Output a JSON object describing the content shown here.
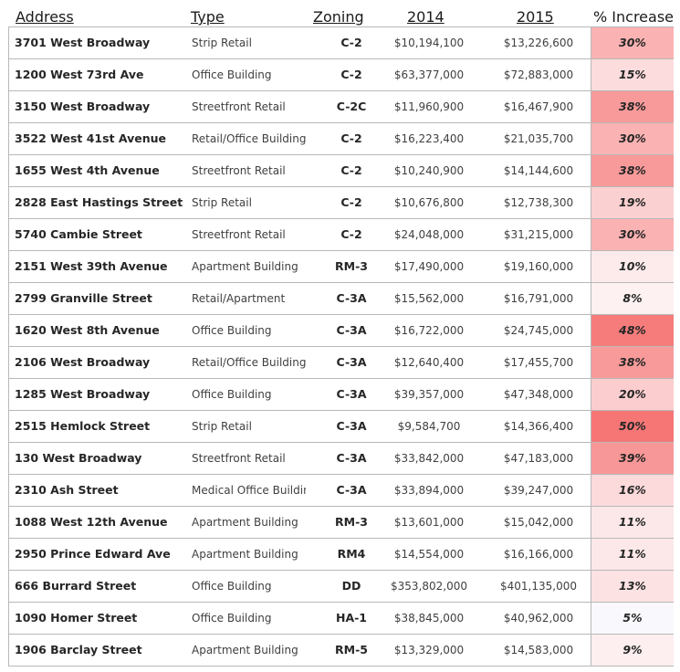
{
  "headers": {
    "address": "Address",
    "type": "Type",
    "zoning": "Zoning",
    "y2014": "2014",
    "y2015": "2015",
    "increase": "% Increase"
  },
  "rows": [
    {
      "address": "3701 West Broadway",
      "type": "Strip Retail",
      "zoning": "C-2",
      "v2014": "$10,194,100",
      "v2015": "$13,226,600",
      "increase": "30%",
      "color": "#fab2b2"
    },
    {
      "address": "1200 West 73rd Ave",
      "type": "Office Building",
      "zoning": "C-2",
      "v2014": "$63,377,000",
      "v2015": "$72,883,000",
      "increase": "15%",
      "color": "#fcdcdd"
    },
    {
      "address": "3150 West Broadway",
      "type": "Streetfront Retail",
      "zoning": "C-2C",
      "v2014": "$11,960,900",
      "v2015": "$16,467,900",
      "increase": "38%",
      "color": "#f89a9a"
    },
    {
      "address": "3522 West 41st Avenue",
      "type": "Retail/Office Building",
      "zoning": "C-2",
      "v2014": "$16,223,400",
      "v2015": "$21,035,700",
      "increase": "30%",
      "color": "#fab2b2"
    },
    {
      "address": "1655 West 4th Avenue",
      "type": "Streetfront Retail",
      "zoning": "C-2",
      "v2014": "$10,240,900",
      "v2015": "$14,144,600",
      "increase": "38%",
      "color": "#f89a9a"
    },
    {
      "address": "2828 East Hastings Street",
      "type": "Strip Retail",
      "zoning": "C-2",
      "v2014": "$10,676,800",
      "v2015": "$12,738,300",
      "increase": "19%",
      "color": "#fbd0d1"
    },
    {
      "address": "5740 Cambie Street",
      "type": "Streetfront Retail",
      "zoning": "C-2",
      "v2014": "$24,048,000",
      "v2015": "$31,215,000",
      "increase": "30%",
      "color": "#fab2b2"
    },
    {
      "address": "2151 West 39th Avenue",
      "type": "Apartment Building",
      "zoning": "RM-3",
      "v2014": "$17,490,000",
      "v2015": "$19,160,000",
      "increase": "10%",
      "color": "#fdebec"
    },
    {
      "address": "2799 Granville Street",
      "type": "Retail/Apartment",
      "zoning": "C-3A",
      "v2014": "$15,562,000",
      "v2015": "$16,791,000",
      "increase": "8%",
      "color": "#fdf1f2"
    },
    {
      "address": "1620 West 8th Avenue",
      "type": "Office Building",
      "zoning": "C-3A",
      "v2014": "$16,722,000",
      "v2015": "$24,745,000",
      "increase": "48%",
      "color": "#f67c7c"
    },
    {
      "address": "2106 West Broadway",
      "type": "Retail/Office Building",
      "zoning": "C-3A",
      "v2014": "$12,640,400",
      "v2015": "$17,455,700",
      "increase": "38%",
      "color": "#f89a9a"
    },
    {
      "address": "1285 West Broadway",
      "type": "Office Building",
      "zoning": "C-3A",
      "v2014": "$39,357,000",
      "v2015": "$47,348,000",
      "increase": "20%",
      "color": "#fbcdce"
    },
    {
      "address": "2515 Hemlock Street",
      "type": "Strip Retail",
      "zoning": "C-3A",
      "v2014": "$9,584,700",
      "v2015": "$14,366,400",
      "increase": "50%",
      "color": "#f67676"
    },
    {
      "address": "130 West Broadway",
      "type": "Streetfront Retail",
      "zoning": "C-3A",
      "v2014": "$33,842,000",
      "v2015": "$47,183,000",
      "increase": "39%",
      "color": "#f89797"
    },
    {
      "address": "2310 Ash Street",
      "type": "Medical Office Building",
      "zoning": "C-3A",
      "v2014": "$33,894,000",
      "v2015": "$39,247,000",
      "increase": "16%",
      "color": "#fcd9da"
    },
    {
      "address": "1088 West 12th Avenue",
      "type": "Apartment Building",
      "zoning": "RM-3",
      "v2014": "$13,601,000",
      "v2015": "$15,042,000",
      "increase": "11%",
      "color": "#fce8e9"
    },
    {
      "address": "2950 Prince Edward Ave",
      "type": "Apartment Building",
      "zoning": "RM4",
      "v2014": "$14,554,000",
      "v2015": "$16,166,000",
      "increase": "11%",
      "color": "#fce8e9"
    },
    {
      "address": "666 Burrard Street",
      "type": "Office Building",
      "zoning": "DD",
      "v2014": "$353,802,000",
      "v2015": "$401,135,000",
      "increase": "13%",
      "color": "#fce2e3"
    },
    {
      "address": "1090 Homer Street",
      "type": "Office Building",
      "zoning": "HA-1",
      "v2014": "$38,845,000",
      "v2015": "$40,962,000",
      "increase": "5%",
      "color": "#f9f8fd"
    },
    {
      "address": "1906 Barclay Street",
      "type": "Apartment Building",
      "zoning": "RM-5",
      "v2014": "$13,329,000",
      "v2015": "$14,583,000",
      "increase": "9%",
      "color": "#fdeeef"
    }
  ]
}
